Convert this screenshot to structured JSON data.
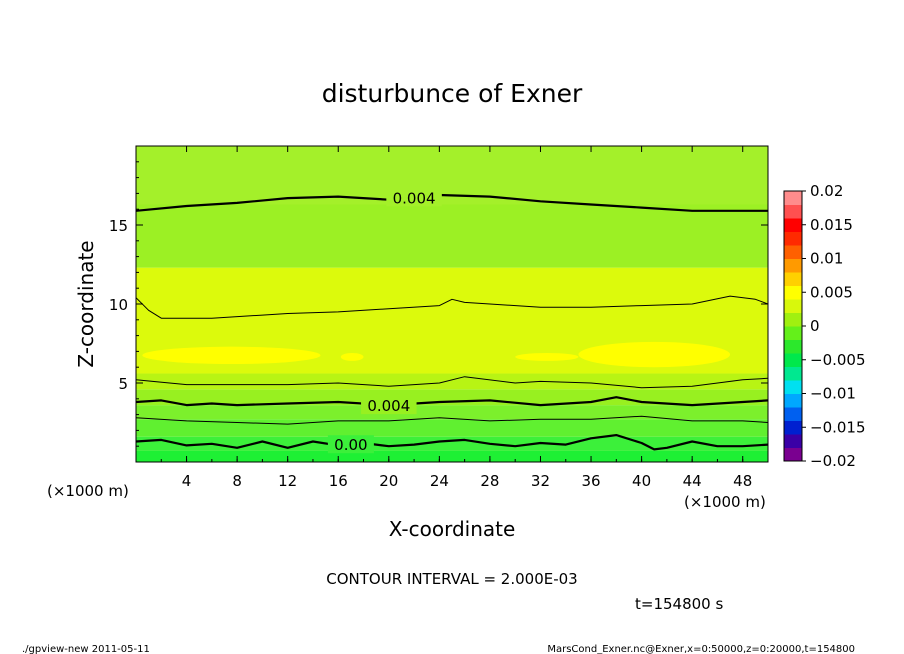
{
  "chart_data": {
    "type": "heatmap",
    "title": "disturbunce of Exner",
    "xlabel": "X-coordinate",
    "ylabel": "Z-coordinate",
    "x_unit": "(×1000 m)",
    "y_unit": "(×1000 m)",
    "xlim": [
      0,
      50
    ],
    "ylim": [
      0,
      20
    ],
    "x_ticks": [
      4,
      8,
      12,
      16,
      20,
      24,
      28,
      32,
      36,
      40,
      44,
      48
    ],
    "y_ticks": [
      5,
      10,
      15
    ],
    "contour_interval_label": "CONTOUR INTERVAL = 2.000E-03",
    "time_label": "t=154800 s",
    "footer_left": "./gpview-new  2011-05-11",
    "footer_right": "MarsCond_Exner.nc@Exner,x=0:50000,z=0:20000,t=154800",
    "colorbar": {
      "ticks": [
        "0.02",
        "0.015",
        "0.01",
        "0.005",
        "0",
        "−0.005",
        "−0.01",
        "−0.015",
        "−0.02"
      ],
      "min": -0.02,
      "max": 0.02,
      "colors": [
        "#7a0090",
        "#3a00a6",
        "#0020d0",
        "#0060f0",
        "#00a8ff",
        "#00e0f0",
        "#00e890",
        "#00e84c",
        "#2ce82c",
        "#64f01a",
        "#a0f010",
        "#d8f80c",
        "#ffff00",
        "#ffd000",
        "#ff9a00",
        "#ff6000",
        "#ff2a00",
        "#ff0000",
        "#ff5050",
        "#ff8c8c"
      ]
    },
    "fill_bands": [
      {
        "z": [
          0,
          0.7
        ],
        "color": "#1ef034"
      },
      {
        "z": [
          0.7,
          1.6
        ],
        "color": "#3cf03a"
      },
      {
        "z": [
          1.6,
          2.7
        ],
        "color": "#60f030"
      },
      {
        "z": [
          2.7,
          3.6
        ],
        "color": "#7cf02c"
      },
      {
        "z": [
          3.6,
          4.6
        ],
        "color": "#98f020"
      },
      {
        "z": [
          4.6,
          5.6
        ],
        "color": "#b8f414"
      },
      {
        "z": [
          5.6,
          12.3
        ],
        "color": "#dcfa0c"
      },
      {
        "z": [
          12.3,
          20
        ],
        "color": "#9cf024"
      },
      {
        "z": [
          16.3,
          20
        ],
        "color": "#a4f02a"
      }
    ],
    "highlights": [
      {
        "x": [
          0.5,
          14.6
        ],
        "z": [
          6.2,
          7.3
        ],
        "color": "#ffff00"
      },
      {
        "x": [
          16.2,
          18.0
        ],
        "z": [
          6.4,
          6.9
        ],
        "color": "#ffff00"
      },
      {
        "x": [
          30.0,
          35.0
        ],
        "z": [
          6.4,
          6.9
        ],
        "color": "#ffff00"
      },
      {
        "x": [
          35.0,
          47.0
        ],
        "z": [
          6.0,
          7.6
        ],
        "color": "#ffff00"
      }
    ],
    "contours": [
      {
        "level": "0.00",
        "label_x": 17,
        "width": 2.2,
        "points": [
          [
            0,
            1.3
          ],
          [
            2,
            1.4
          ],
          [
            4,
            1.05
          ],
          [
            6,
            1.15
          ],
          [
            8,
            0.9
          ],
          [
            10,
            1.3
          ],
          [
            12,
            0.9
          ],
          [
            14,
            1.3
          ],
          [
            16,
            1.05
          ],
          [
            18,
            1.2
          ],
          [
            20,
            1.0
          ],
          [
            22,
            1.1
          ],
          [
            24,
            1.3
          ],
          [
            26,
            1.4
          ],
          [
            28,
            1.15
          ],
          [
            30,
            1.0
          ],
          [
            32,
            1.2
          ],
          [
            34,
            1.1
          ],
          [
            36,
            1.5
          ],
          [
            38,
            1.7
          ],
          [
            40,
            1.2
          ],
          [
            41,
            0.8
          ],
          [
            42,
            0.9
          ],
          [
            44,
            1.3
          ],
          [
            46,
            1.0
          ],
          [
            48,
            1.0
          ],
          [
            50,
            1.1
          ]
        ]
      },
      {
        "level": "",
        "width": 1.0,
        "points": [
          [
            0,
            2.8
          ],
          [
            4,
            2.6
          ],
          [
            8,
            2.5
          ],
          [
            12,
            2.4
          ],
          [
            16,
            2.6
          ],
          [
            20,
            2.6
          ],
          [
            24,
            2.8
          ],
          [
            28,
            2.6
          ],
          [
            32,
            2.7
          ],
          [
            36,
            2.7
          ],
          [
            40,
            2.9
          ],
          [
            44,
            2.6
          ],
          [
            48,
            2.6
          ],
          [
            50,
            2.5
          ]
        ]
      },
      {
        "level": "0.004",
        "label_x": 20,
        "width": 2.2,
        "points": [
          [
            0,
            3.8
          ],
          [
            2,
            3.9
          ],
          [
            4,
            3.6
          ],
          [
            6,
            3.7
          ],
          [
            8,
            3.6
          ],
          [
            12,
            3.7
          ],
          [
            16,
            3.8
          ],
          [
            20,
            3.6
          ],
          [
            24,
            3.8
          ],
          [
            28,
            3.9
          ],
          [
            32,
            3.6
          ],
          [
            36,
            3.8
          ],
          [
            38,
            4.1
          ],
          [
            40,
            3.8
          ],
          [
            44,
            3.6
          ],
          [
            48,
            3.8
          ],
          [
            50,
            3.9
          ]
        ]
      },
      {
        "level": "",
        "width": 1.0,
        "points": [
          [
            0,
            5.2
          ],
          [
            4,
            4.9
          ],
          [
            8,
            4.9
          ],
          [
            12,
            4.9
          ],
          [
            16,
            5.0
          ],
          [
            20,
            4.8
          ],
          [
            24,
            5.0
          ],
          [
            26,
            5.4
          ],
          [
            30,
            5.0
          ],
          [
            32,
            5.1
          ],
          [
            36,
            5.0
          ],
          [
            40,
            4.7
          ],
          [
            44,
            4.8
          ],
          [
            48,
            5.2
          ],
          [
            50,
            5.3
          ]
        ]
      },
      {
        "level": "",
        "width": 1.0,
        "points": [
          [
            0,
            10.4
          ],
          [
            1,
            9.6
          ],
          [
            2,
            9.1
          ],
          [
            6,
            9.1
          ],
          [
            10,
            9.3
          ],
          [
            12,
            9.4
          ],
          [
            16,
            9.5
          ],
          [
            20,
            9.7
          ],
          [
            24,
            9.9
          ],
          [
            25,
            10.3
          ],
          [
            26,
            10.1
          ],
          [
            28,
            10.0
          ],
          [
            32,
            9.8
          ],
          [
            36,
            9.8
          ],
          [
            40,
            9.9
          ],
          [
            44,
            10.0
          ],
          [
            47,
            10.5
          ],
          [
            49,
            10.3
          ],
          [
            50,
            10.0
          ]
        ]
      },
      {
        "level": "0.004",
        "label_x": 22,
        "width": 2.2,
        "points": [
          [
            0,
            15.9
          ],
          [
            4,
            16.2
          ],
          [
            8,
            16.4
          ],
          [
            12,
            16.7
          ],
          [
            16,
            16.8
          ],
          [
            20,
            16.6
          ],
          [
            24,
            16.9
          ],
          [
            28,
            16.8
          ],
          [
            32,
            16.5
          ],
          [
            36,
            16.3
          ],
          [
            40,
            16.1
          ],
          [
            44,
            15.9
          ],
          [
            48,
            15.9
          ],
          [
            50,
            15.9
          ]
        ]
      }
    ]
  }
}
